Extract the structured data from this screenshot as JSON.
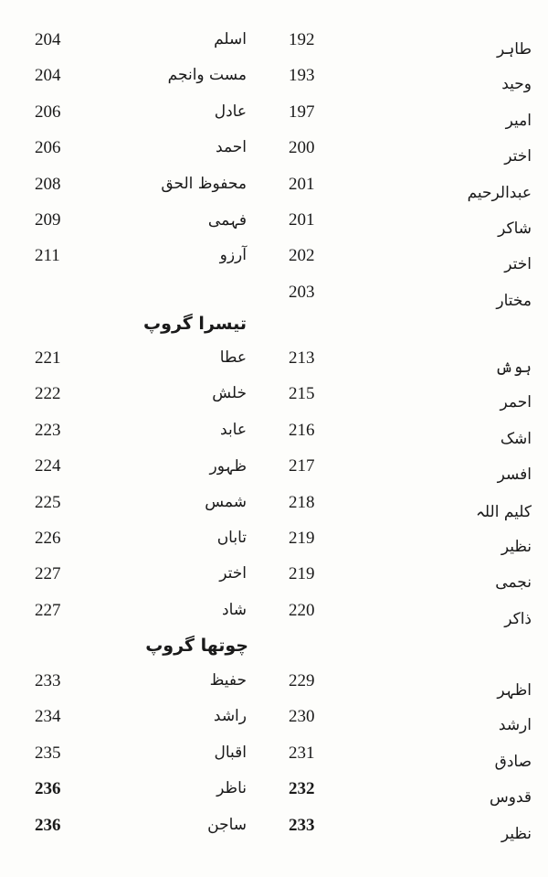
{
  "groups": [
    {
      "heading": "",
      "rows": [
        {
          "name": "طاہر",
          "page": "192",
          "poet": "اسلم",
          "poet_page": "204"
        },
        {
          "name": "وحید",
          "page": "193",
          "poet": "مست وانجم",
          "poet_page": "204"
        },
        {
          "name": "امیر",
          "page": "197",
          "poet": "عادل",
          "poet_page": "206"
        },
        {
          "name": "اختر",
          "page": "200",
          "poet": "احمد",
          "poet_page": "206"
        },
        {
          "name": "عبدالرحیم",
          "page": "201",
          "poet": "محفوظ الحق",
          "poet_page": "208"
        },
        {
          "name": "شاکر",
          "page": "201",
          "poet": "فہمی",
          "poet_page": "209"
        },
        {
          "name": "اختر",
          "page": "202",
          "poet": "آرزو",
          "poet_page": "211"
        },
        {
          "name": "مختار",
          "page": "203",
          "poet": "",
          "poet_page": ""
        }
      ]
    },
    {
      "heading": "تیسرا گروپ",
      "rows": [
        {
          "name": "ہوش",
          "page": "213",
          "poet": "عطا",
          "poet_page": "221"
        },
        {
          "name": "احمر",
          "page": "215",
          "poet": "خلش",
          "poet_page": "222"
        },
        {
          "name": "اشک",
          "page": "216",
          "poet": "عابد",
          "poet_page": "223"
        },
        {
          "name": "افسر",
          "page": "217",
          "poet": "ظہور",
          "poet_page": "224"
        },
        {
          "name": "کلیم اللہ",
          "page": "218",
          "poet": "شمس",
          "poet_page": "225"
        },
        {
          "name": "نظیر",
          "page": "219",
          "poet": "تاباں",
          "poet_page": "226"
        },
        {
          "name": "نجمی",
          "page": "219",
          "poet": "اختر",
          "poet_page": "227"
        },
        {
          "name": "ذاکر",
          "page": "220",
          "poet": "شاد",
          "poet_page": "227"
        }
      ]
    },
    {
      "heading": "چوتھا گروپ",
      "rows": [
        {
          "name": "اظہر",
          "page": "229",
          "poet": "حفیظ",
          "poet_page": "233"
        },
        {
          "name": "ارشد",
          "page": "230",
          "poet": "راشد",
          "poet_page": "234"
        },
        {
          "name": "صادق",
          "page": "231",
          "poet": "اقبال",
          "poet_page": "235"
        },
        {
          "name": "قدوس",
          "page": "232",
          "poet": "ناظر",
          "poet_page": "236"
        },
        {
          "name": "نظیر",
          "page": "233",
          "poet": "ساجن",
          "poet_page": "236"
        }
      ]
    }
  ]
}
